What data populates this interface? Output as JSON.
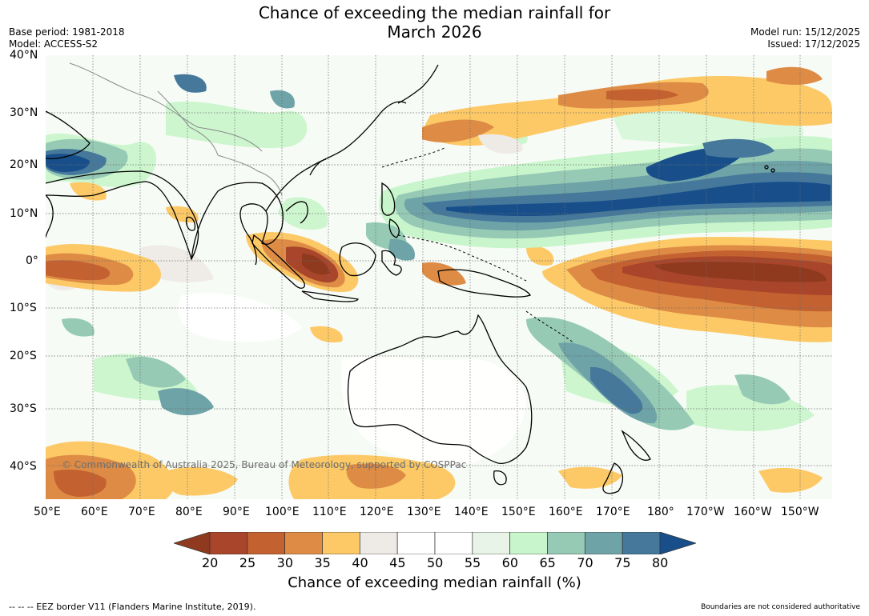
{
  "title_line1": "Chance of exceeding the median rainfall for",
  "title_line2": "March 2026",
  "meta_left": {
    "base_period": "Base period: 1981-2018",
    "model": "Model: ACCESS-S2"
  },
  "meta_right": {
    "model_run": "Model run: 15/12/2025",
    "issued": "Issued: 17/12/2025"
  },
  "lat_labels": [
    "40°N",
    "30°N",
    "20°N",
    "10°N",
    "0°",
    "10°S",
    "20°S",
    "30°S",
    "40°S"
  ],
  "lon_labels": [
    "50°E",
    "60°E",
    "70°E",
    "80°E",
    "90°E",
    "100°E",
    "110°E",
    "120°E",
    "130°E",
    "140°E",
    "150°E",
    "160°E",
    "170°E",
    "180°",
    "170°W",
    "160°W",
    "150°W"
  ],
  "copyright": "© Commonwealth of Australia 2025, Bureau of Meteorology, supported by COSPPac",
  "colorbar": {
    "ticks": [
      "20",
      "25",
      "30",
      "35",
      "40",
      "45",
      "50",
      "55",
      "60",
      "65",
      "70",
      "75",
      "80"
    ],
    "colors": [
      "#8f3a1f",
      "#a8452a",
      "#c46131",
      "#de8c45",
      "#fcc966",
      "#eeeae6",
      "#ffffff",
      "#ffffff",
      "#e9f4e8",
      "#c8f5cb",
      "#96cab5",
      "#6ea3a7",
      "#45789b",
      "#184f8a"
    ],
    "label": "Chance of exceeding median rainfall (%)"
  },
  "footer_left": "--  --  -- EEZ border V11 (Flanders Marine Institute, 2019).",
  "footer_right": "Boundaries are not considered authoritative"
}
